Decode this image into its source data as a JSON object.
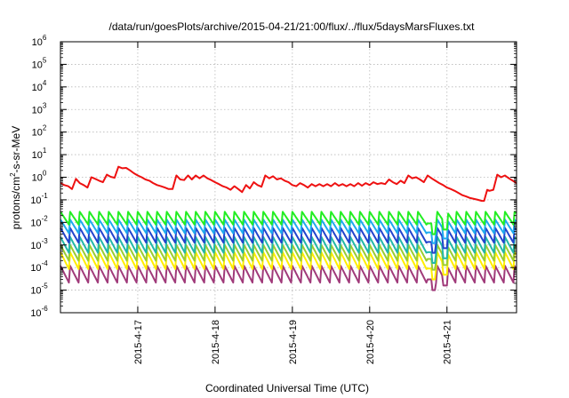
{
  "chart_data": {
    "type": "line",
    "title": "/data/run/goesPlots/archive/2015-04-21/21:00/flux/../flux/5daysMarsFluxes.txt",
    "xlabel": "Coordinated Universal Time (UTC)",
    "ylabel": "protons/cm²-s-sr-MeV",
    "ylabel_parts": {
      "base": "protons/cm",
      "sup": "2",
      "rest": "-s-sr-MeV"
    },
    "yscale": "log",
    "ylim": [
      1e-06,
      1000000.0
    ],
    "y_tick_base": "10",
    "y_tick_exponents": [
      "-6",
      "-5",
      "-4",
      "-3",
      "-2",
      "-1",
      "0",
      "1",
      "2",
      "3",
      "4",
      "5",
      "6"
    ],
    "x_ticks": [
      "2015-4-17",
      "2015-4-18",
      "2015-4-19",
      "2015-4-20",
      "2015-4-21"
    ],
    "x_range_days": [
      -1.0,
      4.9
    ],
    "grid": true,
    "series": [
      {
        "color": "#ee1111",
        "points": [
          [
            -1.0,
            0.55
          ],
          [
            -0.95,
            0.45
          ],
          [
            -0.9,
            0.4
          ],
          [
            -0.85,
            0.3
          ],
          [
            -0.8,
            0.85
          ],
          [
            -0.75,
            0.55
          ],
          [
            -0.7,
            0.45
          ],
          [
            -0.65,
            0.35
          ],
          [
            -0.6,
            1.0
          ],
          [
            -0.55,
            0.85
          ],
          [
            -0.5,
            0.7
          ],
          [
            -0.45,
            0.6
          ],
          [
            -0.4,
            1.3
          ],
          [
            -0.35,
            1.05
          ],
          [
            -0.3,
            0.95
          ],
          [
            -0.25,
            2.9
          ],
          [
            -0.2,
            2.5
          ],
          [
            -0.15,
            2.6
          ],
          [
            -0.1,
            2.0
          ],
          [
            -0.05,
            1.5
          ],
          [
            0.0,
            1.2
          ],
          [
            0.05,
            1.0
          ],
          [
            0.1,
            0.8
          ],
          [
            0.15,
            0.7
          ],
          [
            0.2,
            0.55
          ],
          [
            0.25,
            0.45
          ],
          [
            0.3,
            0.4
          ],
          [
            0.35,
            0.35
          ],
          [
            0.4,
            0.3
          ],
          [
            0.45,
            0.3
          ],
          [
            0.5,
            1.2
          ],
          [
            0.55,
            0.8
          ],
          [
            0.6,
            0.75
          ],
          [
            0.65,
            1.2
          ],
          [
            0.7,
            0.8
          ],
          [
            0.75,
            1.2
          ],
          [
            0.8,
            0.9
          ],
          [
            0.85,
            1.2
          ],
          [
            0.9,
            0.9
          ],
          [
            0.95,
            0.75
          ],
          [
            1.0,
            0.6
          ],
          [
            1.05,
            0.5
          ],
          [
            1.1,
            0.4
          ],
          [
            1.15,
            0.35
          ],
          [
            1.2,
            0.28
          ],
          [
            1.25,
            0.4
          ],
          [
            1.3,
            0.3
          ],
          [
            1.35,
            0.22
          ],
          [
            1.4,
            0.45
          ],
          [
            1.45,
            0.32
          ],
          [
            1.5,
            0.6
          ],
          [
            1.55,
            0.45
          ],
          [
            1.6,
            0.38
          ],
          [
            1.65,
            1.2
          ],
          [
            1.7,
            0.9
          ],
          [
            1.75,
            1.1
          ],
          [
            1.8,
            0.8
          ],
          [
            1.85,
            0.9
          ],
          [
            1.9,
            0.7
          ],
          [
            1.95,
            0.6
          ],
          [
            2.0,
            0.45
          ],
          [
            2.05,
            0.4
          ],
          [
            2.1,
            0.55
          ],
          [
            2.15,
            0.45
          ],
          [
            2.2,
            0.35
          ],
          [
            2.25,
            0.5
          ],
          [
            2.3,
            0.4
          ],
          [
            2.35,
            0.5
          ],
          [
            2.4,
            0.4
          ],
          [
            2.45,
            0.5
          ],
          [
            2.5,
            0.4
          ],
          [
            2.55,
            0.55
          ],
          [
            2.6,
            0.42
          ],
          [
            2.65,
            0.5
          ],
          [
            2.7,
            0.4
          ],
          [
            2.75,
            0.5
          ],
          [
            2.8,
            0.4
          ],
          [
            2.85,
            0.55
          ],
          [
            2.9,
            0.42
          ],
          [
            2.95,
            0.55
          ],
          [
            3.0,
            0.45
          ],
          [
            3.05,
            0.6
          ],
          [
            3.1,
            0.5
          ],
          [
            3.15,
            0.55
          ],
          [
            3.2,
            0.5
          ],
          [
            3.25,
            0.8
          ],
          [
            3.3,
            0.6
          ],
          [
            3.35,
            0.5
          ],
          [
            3.4,
            0.7
          ],
          [
            3.45,
            0.55
          ],
          [
            3.5,
            1.2
          ],
          [
            3.55,
            0.9
          ],
          [
            3.6,
            1.0
          ],
          [
            3.65,
            0.8
          ],
          [
            3.7,
            0.6
          ],
          [
            3.75,
            1.2
          ],
          [
            3.8,
            0.9
          ],
          [
            3.85,
            0.7
          ],
          [
            3.9,
            0.55
          ],
          [
            3.95,
            0.45
          ],
          [
            4.0,
            0.35
          ],
          [
            4.05,
            0.3
          ],
          [
            4.1,
            0.25
          ],
          [
            4.15,
            0.2
          ],
          [
            4.2,
            0.16
          ],
          [
            4.25,
            0.14
          ],
          [
            4.3,
            0.12
          ],
          [
            4.35,
            0.11
          ],
          [
            4.4,
            0.1
          ],
          [
            4.45,
            0.09
          ],
          [
            4.48,
            0.09
          ],
          [
            4.52,
            0.28
          ],
          [
            4.55,
            0.25
          ],
          [
            4.6,
            0.28
          ],
          [
            4.65,
            1.3
          ],
          [
            4.7,
            1.0
          ],
          [
            4.75,
            1.2
          ],
          [
            4.8,
            0.9
          ],
          [
            4.85,
            0.7
          ],
          [
            4.9,
            0.55
          ]
        ]
      },
      {
        "color": "#22ee22",
        "base": 0.014,
        "amplitude": 0.65,
        "dip": 0.003
      },
      {
        "color": "#1eaaee",
        "base": 0.006,
        "amplitude": 0.7,
        "dip": 0.0012
      },
      {
        "color": "#2244cc",
        "base": 0.0024,
        "amplitude": 0.75,
        "dip": 0.00045
      },
      {
        "color": "#22b8a8",
        "base": 0.0009,
        "amplitude": 0.8,
        "dip": 0.00016
      },
      {
        "color": "#9acd32",
        "base": 0.0004,
        "amplitude": 0.8,
        "dip": 8e-05
      },
      {
        "color": "#ffee00",
        "base": 0.00018,
        "amplitude": 0.85,
        "dip": 3e-05
      },
      {
        "color": "#a03a7a",
        "base": 4.5e-05,
        "amplitude": 0.85,
        "dip": 1e-05
      }
    ]
  }
}
